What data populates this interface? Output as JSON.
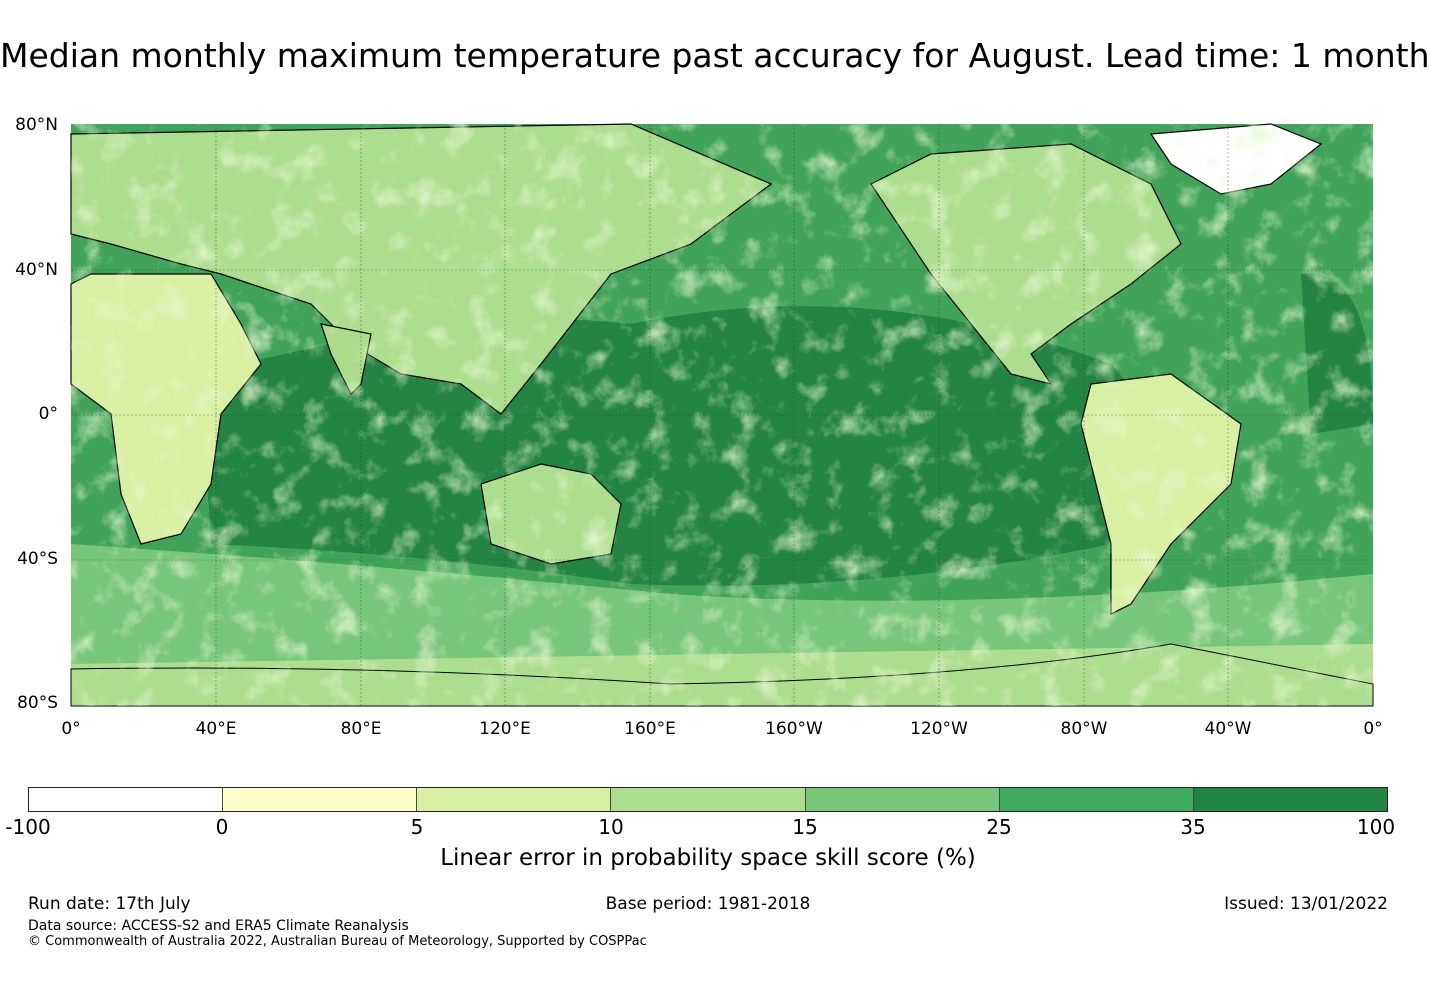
{
  "title": "Median monthly maximum temperature past accuracy for August. Lead time: 1 month",
  "map": {
    "lat_labels": [
      "80°N",
      "40°N",
      "0°",
      "40°S",
      "80°S"
    ],
    "lon_labels": [
      "0°",
      "40°E",
      "80°E",
      "120°E",
      "160°E",
      "160°W",
      "120°W",
      "80°W",
      "40°W",
      "0°"
    ],
    "colors": {
      "ocean": "#41a35a",
      "ocean_deep": "#238443",
      "land": "#acdc8b",
      "coast": "#000000"
    }
  },
  "colorbar": {
    "ticks": [
      "-100",
      "0",
      "5",
      "10",
      "15",
      "25",
      "35",
      "100"
    ],
    "colors": [
      "#ffffff",
      "#ffffcc",
      "#d9f0a3",
      "#addd8e",
      "#78c679",
      "#41ab5d",
      "#238443"
    ],
    "label": "Linear error in probability space skill score (%)"
  },
  "footer": {
    "run_date": "Run date: 17th July",
    "base_period": "Base period: 1981-2018",
    "issued": "Issued: 13/01/2022",
    "data_source": "Data source: ACCESS-S2 and ERA5 Climate Reanalysis",
    "copyright": "© Commonwealth of Australia 2022, Australian Bureau of Meteorology, Supported by COSPPac"
  }
}
